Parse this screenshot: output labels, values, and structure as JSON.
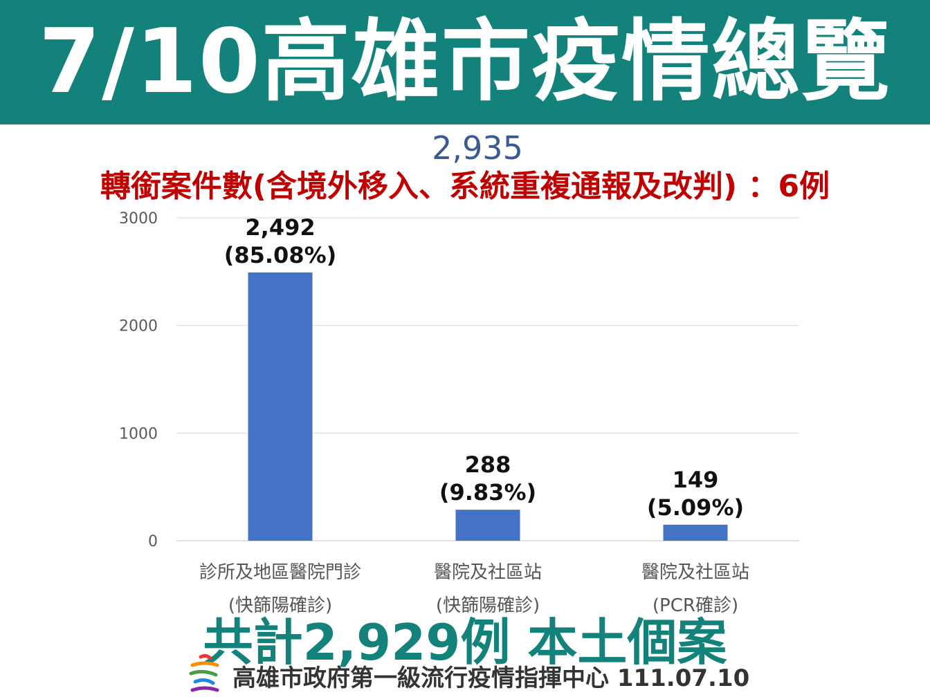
{
  "header": {
    "title": "7/10高雄市疫情總覽",
    "background": "#13827a"
  },
  "total_value": "2,935",
  "transfer_note": "轉銜案件數(含境外移入、系統重複通報及改判) ：6例",
  "chart_data": {
    "type": "bar",
    "categories": [
      [
        "診所及地區醫院門診",
        "(快篩陽確診)"
      ],
      [
        "醫院及社區站",
        "(快篩陽確診)"
      ],
      [
        "醫院及社區站",
        "(PCR確診)"
      ]
    ],
    "values": [
      2492,
      288,
      149
    ],
    "data_labels": [
      [
        "2,492",
        "(85.08%)"
      ],
      [
        "288",
        "(9.83%)"
      ],
      [
        "149",
        "(5.09%)"
      ]
    ],
    "yticks": [
      "0",
      "1000",
      "2000",
      "3000"
    ],
    "ylim": [
      0,
      3000
    ],
    "grid": true,
    "legend": "none",
    "bar_color": "#4472c4"
  },
  "footer": {
    "total_text": "共計2,929例 本土個案",
    "source": "高雄市政府第一級流行疫情指揮中心 111.07.10",
    "logo_icon": "kaohsiung-city-logo-icon"
  }
}
